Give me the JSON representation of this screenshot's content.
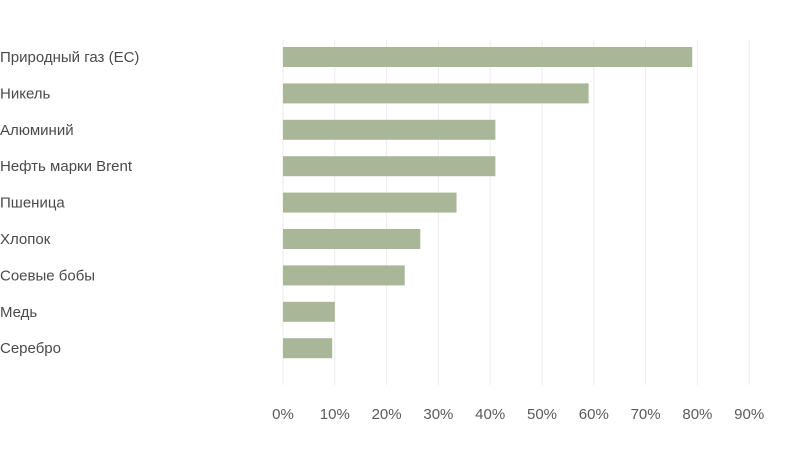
{
  "chart_data": {
    "type": "bar",
    "orientation": "horizontal",
    "categories": [
      "Природный газ (ЕС)",
      "Никель",
      "Алюминий",
      "Нефть марки Brent",
      "Пшеница",
      "Хлопок",
      "Соевые бобы",
      "Медь",
      "Серебро"
    ],
    "values": [
      79,
      59,
      41,
      41,
      33.5,
      26.5,
      23.5,
      10,
      9.5
    ],
    "xlim": [
      0,
      90
    ],
    "x_ticks": [
      0,
      10,
      20,
      30,
      40,
      50,
      60,
      70,
      80,
      90
    ],
    "x_tick_labels": [
      "0%",
      "10%",
      "20%",
      "30%",
      "40%",
      "50%",
      "60%",
      "70%",
      "80%",
      "90%"
    ],
    "grid": true,
    "bar_color": "#a9b697",
    "grid_color": "#ebebeb",
    "title": "",
    "xlabel": "",
    "ylabel": ""
  }
}
